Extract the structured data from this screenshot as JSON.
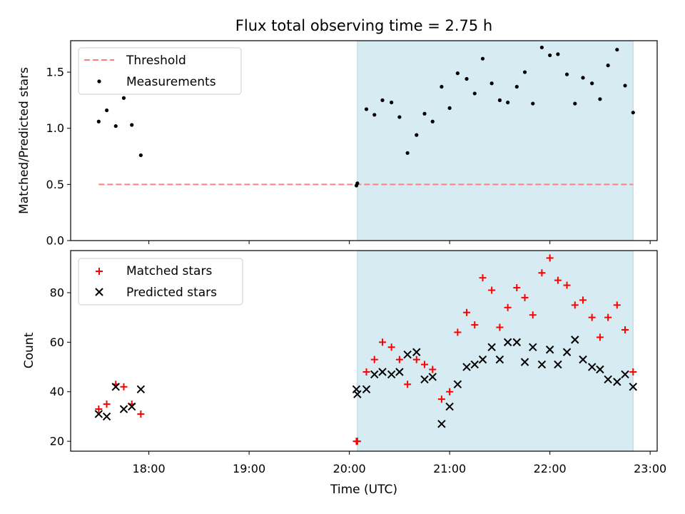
{
  "chart_data": [
    {
      "type": "scatter",
      "title": "Flux total observing time = 2.75 h",
      "xlabel": "",
      "ylabel": "Matched/Predicted stars",
      "ylim": [
        0,
        1.78
      ],
      "yticks": [
        0.0,
        0.5,
        1.0,
        1.5
      ],
      "ytick_labels": [
        "0.0",
        "0.5",
        "1.0",
        "1.5"
      ],
      "xlim_hours": [
        17.22,
        23.07
      ],
      "shaded_span_hours": [
        20.08,
        22.83
      ],
      "shade_color": "#add8e6",
      "grid": false,
      "legend_position": "upper-left",
      "series": [
        {
          "name": "Threshold",
          "style": "dashed-line",
          "color": "#ff7f7f",
          "x_hours": [
            17.5,
            22.83
          ],
          "y": [
            0.5,
            0.5
          ]
        },
        {
          "name": "Measurements",
          "style": "dot",
          "color": "#000000",
          "x_hours": [
            17.5,
            17.58,
            17.67,
            17.75,
            17.83,
            17.92,
            20.07,
            20.08,
            20.17,
            20.25,
            20.33,
            20.42,
            20.5,
            20.58,
            20.67,
            20.75,
            20.83,
            20.92,
            21.0,
            21.08,
            21.17,
            21.25,
            21.33,
            21.42,
            21.5,
            21.58,
            21.67,
            21.75,
            21.83,
            21.92,
            22.0,
            22.08,
            22.17,
            22.25,
            22.33,
            22.42,
            22.5,
            22.58,
            22.67,
            22.75,
            22.83
          ],
          "y": [
            1.06,
            1.16,
            1.02,
            1.27,
            1.03,
            0.76,
            0.49,
            0.51,
            1.17,
            1.12,
            1.25,
            1.23,
            1.1,
            0.78,
            0.94,
            1.13,
            1.06,
            1.37,
            1.18,
            1.49,
            1.44,
            1.31,
            1.62,
            1.4,
            1.25,
            1.23,
            1.37,
            1.5,
            1.22,
            1.72,
            1.65,
            1.66,
            1.48,
            1.22,
            1.45,
            1.4,
            1.26,
            1.56,
            1.7,
            1.38,
            1.14
          ]
        }
      ]
    },
    {
      "type": "scatter",
      "title": "",
      "xlabel": "Time (UTC)",
      "ylabel": "Count",
      "ylim": [
        16,
        97
      ],
      "yticks": [
        20,
        40,
        60,
        80
      ],
      "ytick_labels": [
        "20",
        "40",
        "60",
        "80"
      ],
      "xlim_hours": [
        17.22,
        23.07
      ],
      "xticks_hours": [
        18,
        19,
        20,
        21,
        22,
        23
      ],
      "xtick_labels": [
        "18:00",
        "19:00",
        "20:00",
        "21:00",
        "22:00",
        "23:00"
      ],
      "shaded_span_hours": [
        20.08,
        22.83
      ],
      "shade_color": "#add8e6",
      "grid": false,
      "legend_position": "upper-left",
      "series": [
        {
          "name": "Matched stars",
          "style": "plus",
          "color": "#ff0000",
          "x_hours": [
            17.5,
            17.58,
            17.67,
            17.75,
            17.83,
            17.92,
            20.07,
            20.08,
            20.17,
            20.25,
            20.33,
            20.42,
            20.5,
            20.58,
            20.67,
            20.75,
            20.83,
            20.92,
            21.0,
            21.08,
            21.17,
            21.25,
            21.33,
            21.42,
            21.5,
            21.58,
            21.67,
            21.75,
            21.83,
            21.92,
            22.0,
            22.08,
            22.17,
            22.25,
            22.33,
            22.42,
            22.5,
            22.58,
            22.67,
            22.75,
            22.83
          ],
          "y": [
            33,
            35,
            43,
            42,
            35,
            31,
            20,
            20,
            48,
            53,
            60,
            58,
            53,
            43,
            53,
            51,
            49,
            37,
            40,
            64,
            72,
            67,
            86,
            81,
            66,
            74,
            82,
            78,
            71,
            88,
            94,
            85,
            83,
            75,
            77,
            70,
            62,
            70,
            75,
            65,
            48
          ]
        },
        {
          "name": "Predicted stars",
          "style": "x",
          "color": "#000000",
          "x_hours": [
            17.5,
            17.58,
            17.67,
            17.75,
            17.83,
            17.92,
            20.07,
            20.08,
            20.17,
            20.25,
            20.33,
            20.42,
            20.5,
            20.58,
            20.67,
            20.75,
            20.83,
            20.92,
            21.0,
            21.08,
            21.17,
            21.25,
            21.33,
            21.42,
            21.5,
            21.58,
            21.67,
            21.75,
            21.83,
            21.92,
            22.0,
            22.08,
            22.17,
            22.25,
            22.33,
            22.42,
            22.5,
            22.58,
            22.67,
            22.75,
            22.83
          ],
          "y": [
            31,
            30,
            42,
            33,
            34,
            41,
            41,
            39,
            41,
            47,
            48,
            47,
            48,
            55,
            56,
            45,
            46,
            27,
            34,
            43,
            50,
            51,
            53,
            58,
            53,
            60,
            60,
            52,
            58,
            51,
            57,
            51,
            56,
            61,
            53,
            50,
            49,
            45,
            44,
            47,
            42
          ]
        }
      ]
    }
  ]
}
